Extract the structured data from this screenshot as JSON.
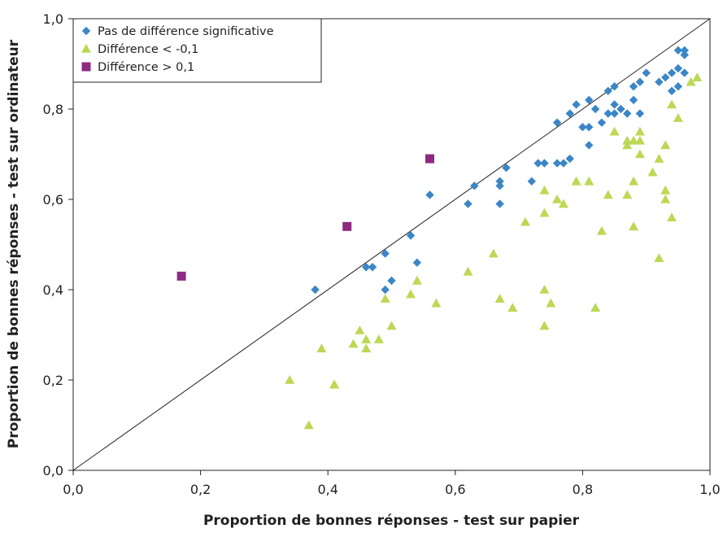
{
  "chart_data": {
    "type": "scatter",
    "xlabel": "Proportion de bonnes réponses - test sur papier",
    "ylabel": "Proportion de bonnes réponses - test sur ordinateur",
    "xlim": [
      0,
      1
    ],
    "ylim": [
      0,
      1
    ],
    "x_ticks": [
      "0,0",
      "0,2",
      "0,4",
      "0,6",
      "0,8",
      "1,0"
    ],
    "y_ticks": [
      "0,0",
      "0,2",
      "0,4",
      "0,6",
      "0,8",
      "1,0"
    ],
    "tick_values": [
      0,
      0.2,
      0.4,
      0.6,
      0.8,
      1.0
    ],
    "grid": false,
    "legend_position": "top-left",
    "reference_line": "y = x",
    "series": [
      {
        "name": "Pas de différence significative",
        "marker": "diamond",
        "color": "#3b86c6",
        "points": [
          [
            0.38,
            0.4
          ],
          [
            0.46,
            0.45
          ],
          [
            0.47,
            0.45
          ],
          [
            0.49,
            0.48
          ],
          [
            0.49,
            0.4
          ],
          [
            0.5,
            0.42
          ],
          [
            0.53,
            0.52
          ],
          [
            0.54,
            0.46
          ],
          [
            0.56,
            0.61
          ],
          [
            0.62,
            0.59
          ],
          [
            0.63,
            0.63
          ],
          [
            0.67,
            0.64
          ],
          [
            0.67,
            0.63
          ],
          [
            0.67,
            0.59
          ],
          [
            0.68,
            0.67
          ],
          [
            0.72,
            0.64
          ],
          [
            0.73,
            0.68
          ],
          [
            0.74,
            0.68
          ],
          [
            0.76,
            0.68
          ],
          [
            0.76,
            0.77
          ],
          [
            0.77,
            0.68
          ],
          [
            0.78,
            0.69
          ],
          [
            0.78,
            0.79
          ],
          [
            0.79,
            0.81
          ],
          [
            0.8,
            0.76
          ],
          [
            0.81,
            0.76
          ],
          [
            0.81,
            0.82
          ],
          [
            0.81,
            0.72
          ],
          [
            0.82,
            0.8
          ],
          [
            0.83,
            0.77
          ],
          [
            0.84,
            0.79
          ],
          [
            0.84,
            0.84
          ],
          [
            0.85,
            0.85
          ],
          [
            0.85,
            0.81
          ],
          [
            0.85,
            0.79
          ],
          [
            0.86,
            0.8
          ],
          [
            0.87,
            0.79
          ],
          [
            0.88,
            0.85
          ],
          [
            0.88,
            0.82
          ],
          [
            0.89,
            0.79
          ],
          [
            0.89,
            0.86
          ],
          [
            0.9,
            0.88
          ],
          [
            0.92,
            0.86
          ],
          [
            0.93,
            0.87
          ],
          [
            0.94,
            0.84
          ],
          [
            0.94,
            0.88
          ],
          [
            0.95,
            0.85
          ],
          [
            0.95,
            0.89
          ],
          [
            0.95,
            0.93
          ],
          [
            0.96,
            0.92
          ],
          [
            0.96,
            0.93
          ],
          [
            0.96,
            0.88
          ],
          [
            0.96,
            0.92
          ]
        ]
      },
      {
        "name": "Différence < -0,1",
        "marker": "triangle",
        "color": "#bcd855",
        "points": [
          [
            0.34,
            0.2
          ],
          [
            0.37,
            0.1
          ],
          [
            0.39,
            0.27
          ],
          [
            0.41,
            0.19
          ],
          [
            0.41,
            0.19
          ],
          [
            0.44,
            0.28
          ],
          [
            0.45,
            0.31
          ],
          [
            0.46,
            0.27
          ],
          [
            0.46,
            0.29
          ],
          [
            0.48,
            0.29
          ],
          [
            0.49,
            0.38
          ],
          [
            0.5,
            0.32
          ],
          [
            0.53,
            0.39
          ],
          [
            0.54,
            0.42
          ],
          [
            0.57,
            0.37
          ],
          [
            0.62,
            0.44
          ],
          [
            0.66,
            0.48
          ],
          [
            0.67,
            0.38
          ],
          [
            0.69,
            0.36
          ],
          [
            0.71,
            0.55
          ],
          [
            0.74,
            0.62
          ],
          [
            0.74,
            0.57
          ],
          [
            0.74,
            0.4
          ],
          [
            0.74,
            0.32
          ],
          [
            0.75,
            0.37
          ],
          [
            0.76,
            0.6
          ],
          [
            0.77,
            0.59
          ],
          [
            0.79,
            0.64
          ],
          [
            0.81,
            0.64
          ],
          [
            0.82,
            0.36
          ],
          [
            0.83,
            0.53
          ],
          [
            0.84,
            0.61
          ],
          [
            0.85,
            0.75
          ],
          [
            0.87,
            0.72
          ],
          [
            0.87,
            0.73
          ],
          [
            0.87,
            0.61
          ],
          [
            0.88,
            0.73
          ],
          [
            0.88,
            0.54
          ],
          [
            0.88,
            0.64
          ],
          [
            0.89,
            0.7
          ],
          [
            0.89,
            0.73
          ],
          [
            0.89,
            0.75
          ],
          [
            0.91,
            0.66
          ],
          [
            0.92,
            0.69
          ],
          [
            0.92,
            0.47
          ],
          [
            0.93,
            0.72
          ],
          [
            0.93,
            0.62
          ],
          [
            0.93,
            0.6
          ],
          [
            0.94,
            0.81
          ],
          [
            0.94,
            0.56
          ],
          [
            0.95,
            0.78
          ],
          [
            0.97,
            0.86
          ],
          [
            0.98,
            0.87
          ]
        ]
      },
      {
        "name": "Différence > 0,1",
        "marker": "square",
        "color": "#8e2a82",
        "points": [
          [
            0.17,
            0.43
          ],
          [
            0.43,
            0.54
          ],
          [
            0.56,
            0.69
          ]
        ]
      }
    ]
  }
}
